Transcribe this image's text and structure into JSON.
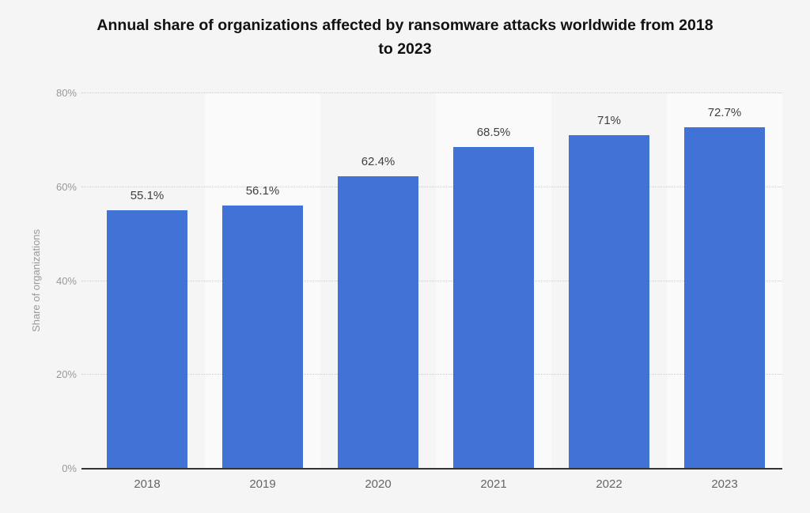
{
  "header": {
    "title_lines": [
      "Annual share of organizations affected by ransomware attacks worldwide from 2018",
      "to 2023"
    ]
  },
  "chart_data": {
    "type": "bar",
    "title": "Annual share of organizations affected by ransomware attacks worldwide from 2018 to 2023",
    "categories": [
      "2018",
      "2019",
      "2020",
      "2021",
      "2022",
      "2023"
    ],
    "values": [
      55.1,
      56.1,
      62.4,
      68.5,
      71,
      72.7
    ],
    "value_labels": [
      "55.1%",
      "56.1%",
      "62.4%",
      "68.5%",
      "71%",
      "72.7%"
    ],
    "xlabel": "",
    "ylabel": "Share of organizations",
    "ylim": [
      0,
      80
    ],
    "y_ticks": [
      {
        "value": 0,
        "label": "0%"
      },
      {
        "value": 20,
        "label": "20%"
      },
      {
        "value": 40,
        "label": "40%"
      },
      {
        "value": 60,
        "label": "60%"
      },
      {
        "value": 80,
        "label": "80%"
      }
    ],
    "grid": "horizontal-dotted",
    "legend": "none",
    "colors": {
      "bar": "#4173d6",
      "page_background": "#f5f5f5",
      "stripe_alt": "#fafafa",
      "gridline": "#cccccc",
      "axis_line": "#333333",
      "tick_text": "#999999",
      "category_text": "#666666",
      "value_label_text": "#404040",
      "title_text": "#111111"
    }
  }
}
